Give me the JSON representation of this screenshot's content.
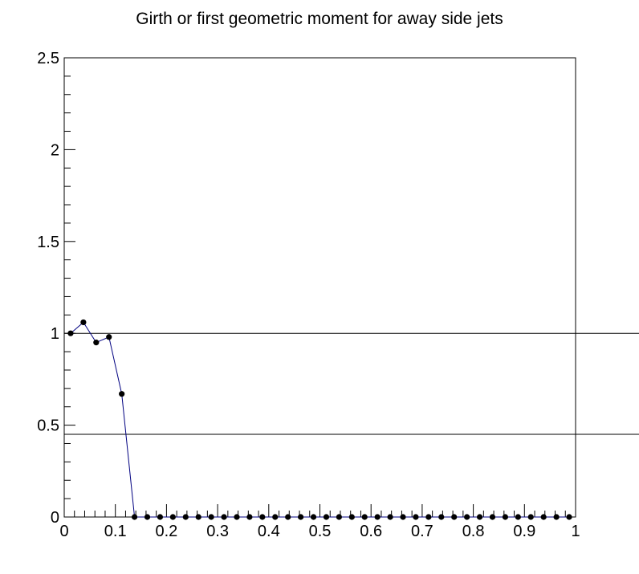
{
  "chart_data": {
    "type": "line",
    "title": "Girth or first geometric moment for away side jets",
    "xlabel": "",
    "ylabel": "",
    "xlim": [
      0,
      1
    ],
    "ylim": [
      0,
      2.5
    ],
    "x_ticks": [
      0,
      0.1,
      0.2,
      0.3,
      0.4,
      0.5,
      0.6,
      0.7,
      0.8,
      0.9,
      1
    ],
    "x_tick_labels": [
      "0",
      "0.1",
      "0.2",
      "0.3",
      "0.4",
      "0.5",
      "0.6",
      "0.7",
      "0.8",
      "0.9",
      "1"
    ],
    "y_ticks": [
      0,
      0.5,
      1,
      1.5,
      2,
      2.5
    ],
    "y_tick_labels": [
      "0",
      "0.5",
      "1",
      "1.5",
      "2",
      "2.5"
    ],
    "reference_lines_y": [
      1.0,
      0.45
    ],
    "series": [
      {
        "color": "#000080",
        "marker_color": "#000000",
        "x": [
          0.0125,
          0.0375,
          0.0625,
          0.0875,
          0.1125,
          0.1375,
          0.1625,
          0.1875,
          0.2125,
          0.2375,
          0.2625,
          0.2875,
          0.3125,
          0.3375,
          0.3625,
          0.3875,
          0.4125,
          0.4375,
          0.4625,
          0.4875,
          0.5125,
          0.5375,
          0.5625,
          0.5875,
          0.6125,
          0.6375,
          0.6625,
          0.6875,
          0.7125,
          0.7375,
          0.7625,
          0.7875,
          0.8125,
          0.8375,
          0.8625,
          0.8875,
          0.9125,
          0.9375,
          0.9625,
          0.9875
        ],
        "y": [
          1.0,
          1.06,
          0.95,
          0.98,
          0.67,
          0,
          0,
          0,
          0,
          0,
          0,
          0,
          0,
          0,
          0,
          0,
          0,
          0,
          0,
          0,
          0,
          0,
          0,
          0,
          0,
          0,
          0,
          0,
          0,
          0,
          0,
          0,
          0,
          0,
          0,
          0,
          0,
          0,
          0,
          0
        ]
      }
    ]
  }
}
